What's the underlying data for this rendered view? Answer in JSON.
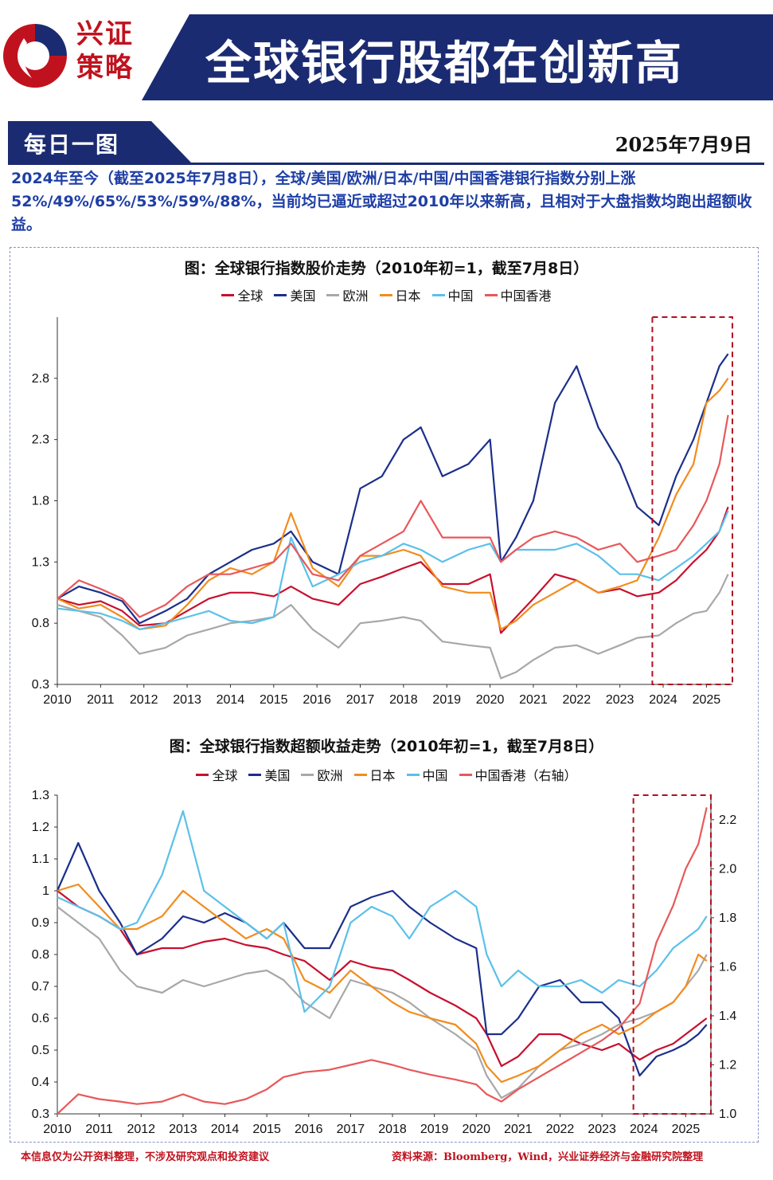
{
  "brand": {
    "line1": "兴证",
    "line2": "策略"
  },
  "header": {
    "title": "全球银行股都在创新高"
  },
  "subheader": {
    "tab": "每日一图",
    "date": "2025年7月9日"
  },
  "summary": "2024年至今（截至2025年7月8日），全球/美国/欧洲/日本/中国/中国香港银行指数分别上涨52%/49%/65%/53%/59%/88%，当前均已逼近或超过2010年以来新高，且相对于大盘指数均跑出超额收益。",
  "footer": {
    "disclaimer": "本信息仅为公开资料整理，不涉及研究观点和投资建议",
    "source": "资料来源：Bloomberg，Wind，兴业证券经济与金融研究院整理"
  },
  "colors": {
    "navy": "#1b2b72",
    "brand_red": "#c0121e",
    "highlight": "#b01020"
  },
  "chart_data": [
    {
      "type": "line",
      "title": "图：全球银行指数股价走势（2010年初=1，截至7月8日）",
      "x_ticks": [
        "2010",
        "2011",
        "2012",
        "2013",
        "2014",
        "2015",
        "2016",
        "2017",
        "2018",
        "2019",
        "2020",
        "2021",
        "2022",
        "2023",
        "2024",
        "2025"
      ],
      "y_ticks": [
        "0.3",
        "0.8",
        "1.3",
        "1.8",
        "2.3",
        "2.8"
      ],
      "ylim": [
        0.3,
        3.3
      ],
      "xlim": [
        2010.0,
        2025.6
      ],
      "highlight_range": [
        2023.75,
        2025.6
      ],
      "x": [
        2010.0,
        2010.5,
        2011.0,
        2011.5,
        2011.9,
        2012.5,
        2013.0,
        2013.5,
        2014.0,
        2014.5,
        2015.0,
        2015.4,
        2015.9,
        2016.5,
        2017.0,
        2017.5,
        2018.0,
        2018.4,
        2018.9,
        2019.5,
        2020.0,
        2020.25,
        2020.6,
        2021.0,
        2021.5,
        2022.0,
        2022.5,
        2023.0,
        2023.4,
        2023.9,
        2024.3,
        2024.7,
        2025.0,
        2025.3,
        2025.5
      ],
      "series": [
        {
          "name": "全球",
          "color": "#c8102e",
          "values": [
            1.0,
            0.95,
            0.98,
            0.9,
            0.78,
            0.8,
            0.9,
            1.0,
            1.05,
            1.05,
            1.02,
            1.1,
            1.0,
            0.95,
            1.12,
            1.18,
            1.25,
            1.3,
            1.12,
            1.12,
            1.2,
            0.72,
            0.85,
            1.0,
            1.2,
            1.15,
            1.05,
            1.08,
            1.02,
            1.05,
            1.15,
            1.3,
            1.4,
            1.55,
            1.75
          ]
        },
        {
          "name": "美国",
          "color": "#1b2f8a",
          "values": [
            1.0,
            1.1,
            1.05,
            0.98,
            0.8,
            0.9,
            1.0,
            1.2,
            1.3,
            1.4,
            1.45,
            1.55,
            1.3,
            1.2,
            1.9,
            2.0,
            2.3,
            2.4,
            2.0,
            2.1,
            2.3,
            1.3,
            1.5,
            1.8,
            2.6,
            2.9,
            2.4,
            2.1,
            1.75,
            1.6,
            2.0,
            2.3,
            2.6,
            2.9,
            3.0
          ]
        },
        {
          "name": "欧洲",
          "color": "#a8a8a8",
          "values": [
            0.95,
            0.9,
            0.85,
            0.7,
            0.55,
            0.6,
            0.7,
            0.75,
            0.8,
            0.82,
            0.85,
            0.95,
            0.75,
            0.6,
            0.8,
            0.82,
            0.85,
            0.82,
            0.65,
            0.62,
            0.6,
            0.35,
            0.4,
            0.5,
            0.6,
            0.62,
            0.55,
            0.62,
            0.68,
            0.7,
            0.8,
            0.88,
            0.9,
            1.05,
            1.2
          ]
        },
        {
          "name": "日本",
          "color": "#f28c1e",
          "values": [
            1.0,
            0.92,
            0.95,
            0.85,
            0.75,
            0.78,
            0.95,
            1.15,
            1.25,
            1.2,
            1.3,
            1.7,
            1.25,
            1.1,
            1.35,
            1.35,
            1.4,
            1.35,
            1.1,
            1.05,
            1.05,
            0.75,
            0.82,
            0.95,
            1.05,
            1.15,
            1.05,
            1.1,
            1.15,
            1.5,
            1.85,
            2.1,
            2.6,
            2.7,
            2.8
          ]
        },
        {
          "name": "中国",
          "color": "#5bc0ea",
          "values": [
            0.92,
            0.9,
            0.88,
            0.82,
            0.75,
            0.8,
            0.85,
            0.9,
            0.82,
            0.8,
            0.85,
            1.5,
            1.1,
            1.2,
            1.3,
            1.35,
            1.45,
            1.4,
            1.3,
            1.4,
            1.45,
            1.3,
            1.4,
            1.4,
            1.4,
            1.45,
            1.35,
            1.2,
            1.2,
            1.15,
            1.25,
            1.35,
            1.45,
            1.55,
            1.72
          ]
        },
        {
          "name": "中国香港",
          "color": "#e8585a",
          "values": [
            1.0,
            1.15,
            1.08,
            1.0,
            0.85,
            0.95,
            1.1,
            1.2,
            1.2,
            1.25,
            1.3,
            1.45,
            1.2,
            1.15,
            1.35,
            1.45,
            1.55,
            1.8,
            1.5,
            1.5,
            1.5,
            1.3,
            1.4,
            1.5,
            1.55,
            1.5,
            1.4,
            1.45,
            1.3,
            1.35,
            1.4,
            1.6,
            1.8,
            2.1,
            2.5
          ]
        }
      ]
    },
    {
      "type": "line",
      "title": "图：全球银行指数超额收益走势（2010年初=1，截至7月8日）",
      "x_ticks": [
        "2010",
        "2011",
        "2012",
        "2013",
        "2014",
        "2015",
        "2016",
        "2017",
        "2018",
        "2019",
        "2020",
        "2021",
        "2022",
        "2023",
        "2024",
        "2025"
      ],
      "y_ticks": [
        "0.3",
        "0.4",
        "0.5",
        "0.6",
        "0.7",
        "0.8",
        "0.9",
        "1",
        "1.1",
        "1.2",
        "1.3"
      ],
      "y2_ticks": [
        "1.0",
        "1.2",
        "1.4",
        "1.6",
        "1.8",
        "2.0",
        "2.2"
      ],
      "ylim": [
        0.3,
        1.3
      ],
      "y2lim": [
        1.0,
        2.3
      ],
      "xlim": [
        2010.0,
        2025.6
      ],
      "highlight_range": [
        2023.75,
        2025.6
      ],
      "x": [
        2010.0,
        2010.5,
        2011.0,
        2011.5,
        2011.9,
        2012.5,
        2013.0,
        2013.5,
        2014.0,
        2014.5,
        2015.0,
        2015.4,
        2015.9,
        2016.5,
        2017.0,
        2017.5,
        2018.0,
        2018.4,
        2018.9,
        2019.5,
        2020.0,
        2020.25,
        2020.6,
        2021.0,
        2021.5,
        2022.0,
        2022.5,
        2023.0,
        2023.4,
        2023.9,
        2024.3,
        2024.7,
        2025.0,
        2025.3,
        2025.5
      ],
      "series": [
        {
          "name": "全球",
          "color": "#c8102e",
          "axis": "left",
          "values": [
            1.0,
            0.95,
            0.92,
            0.88,
            0.8,
            0.82,
            0.82,
            0.84,
            0.85,
            0.83,
            0.82,
            0.8,
            0.78,
            0.72,
            0.78,
            0.76,
            0.75,
            0.72,
            0.68,
            0.64,
            0.6,
            0.55,
            0.45,
            0.48,
            0.55,
            0.55,
            0.52,
            0.5,
            0.52,
            0.47,
            0.5,
            0.52,
            0.55,
            0.58,
            0.6
          ]
        },
        {
          "name": "美国",
          "color": "#1b2f8a",
          "axis": "left",
          "values": [
            1.0,
            1.15,
            1.0,
            0.9,
            0.8,
            0.85,
            0.92,
            0.9,
            0.93,
            0.9,
            0.85,
            0.9,
            0.82,
            0.82,
            0.95,
            0.98,
            1.0,
            0.95,
            0.9,
            0.85,
            0.82,
            0.55,
            0.55,
            0.6,
            0.7,
            0.72,
            0.65,
            0.65,
            0.6,
            0.42,
            0.48,
            0.5,
            0.52,
            0.55,
            0.58
          ]
        },
        {
          "name": "欧洲",
          "color": "#a8a8a8",
          "axis": "left",
          "values": [
            0.95,
            0.9,
            0.85,
            0.75,
            0.7,
            0.68,
            0.72,
            0.7,
            0.72,
            0.74,
            0.75,
            0.72,
            0.65,
            0.6,
            0.72,
            0.7,
            0.68,
            0.65,
            0.6,
            0.55,
            0.5,
            0.42,
            0.35,
            0.38,
            0.45,
            0.5,
            0.52,
            0.55,
            0.58,
            0.6,
            0.62,
            0.65,
            0.7,
            0.75,
            0.8
          ]
        },
        {
          "name": "日本",
          "color": "#f28c1e",
          "axis": "left",
          "values": [
            1.0,
            1.02,
            0.95,
            0.88,
            0.88,
            0.92,
            1.0,
            0.95,
            0.9,
            0.85,
            0.88,
            0.85,
            0.72,
            0.68,
            0.75,
            0.7,
            0.65,
            0.62,
            0.6,
            0.58,
            0.52,
            0.45,
            0.4,
            0.42,
            0.45,
            0.5,
            0.55,
            0.58,
            0.55,
            0.58,
            0.62,
            0.65,
            0.7,
            0.8,
            0.78
          ]
        },
        {
          "name": "中国",
          "color": "#5bc0ea",
          "axis": "left",
          "values": [
            0.98,
            0.95,
            0.92,
            0.88,
            0.9,
            1.05,
            1.25,
            1.0,
            0.95,
            0.9,
            0.85,
            0.9,
            0.62,
            0.7,
            0.9,
            0.95,
            0.92,
            0.85,
            0.95,
            1.0,
            0.95,
            0.8,
            0.7,
            0.75,
            0.7,
            0.7,
            0.72,
            0.68,
            0.72,
            0.7,
            0.75,
            0.82,
            0.85,
            0.88,
            0.92
          ]
        },
        {
          "name": "中国香港（右轴）",
          "color": "#e8585a",
          "axis": "right",
          "values": [
            1.0,
            1.08,
            1.06,
            1.05,
            1.04,
            1.05,
            1.08,
            1.05,
            1.04,
            1.06,
            1.1,
            1.15,
            1.17,
            1.18,
            1.2,
            1.22,
            1.2,
            1.18,
            1.16,
            1.14,
            1.12,
            1.08,
            1.05,
            1.1,
            1.15,
            1.2,
            1.25,
            1.3,
            1.35,
            1.45,
            1.7,
            1.85,
            2.0,
            2.1,
            2.25
          ]
        }
      ]
    }
  ]
}
